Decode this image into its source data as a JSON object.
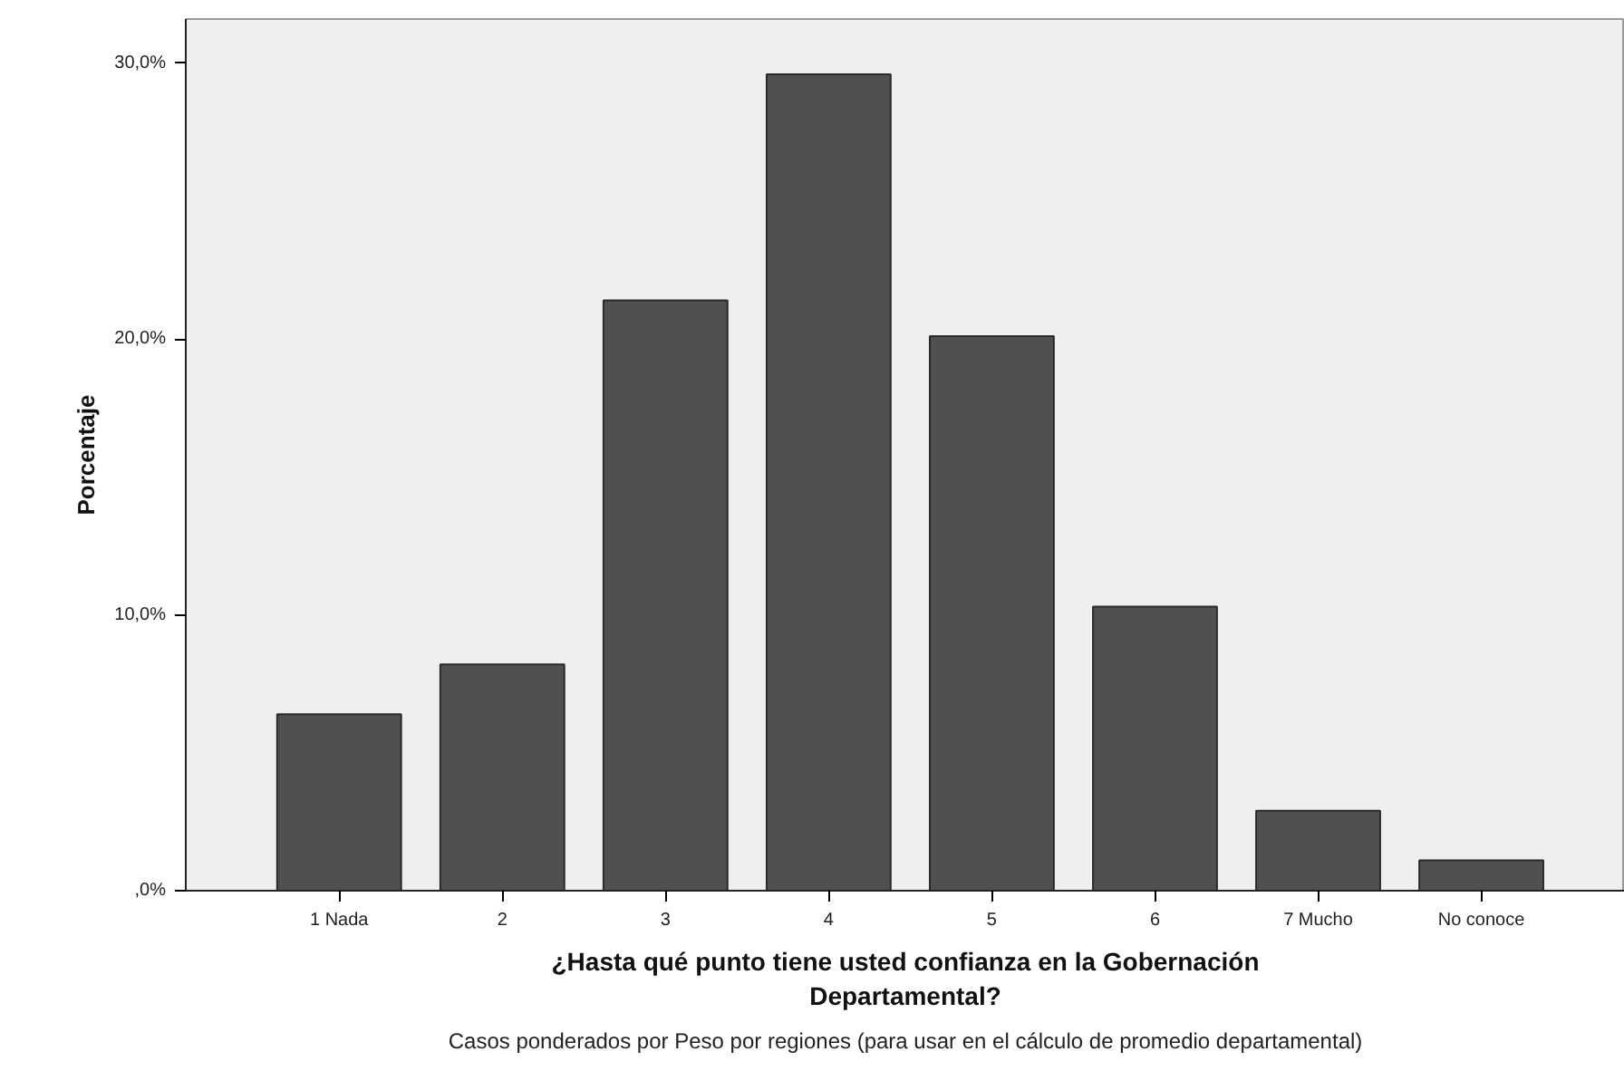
{
  "chart_data": {
    "type": "bar",
    "categories": [
      "1 Nada",
      "2",
      "3",
      "4",
      "5",
      "6",
      "7 Mucho",
      "No conoce"
    ],
    "values": [
      6.4,
      8.2,
      21.4,
      29.6,
      20.1,
      10.3,
      2.9,
      1.1
    ],
    "color": "#505050",
    "xlabel": "¿Hasta qué punto tiene usted confianza en la Gobernación Departamental?",
    "ylabel": "Porcentaje",
    "ylim": [
      0,
      31.6
    ],
    "yticks": [
      {
        "value": 0,
        "label": ",0%"
      },
      {
        "value": 10,
        "label": "10,0%"
      },
      {
        "value": 20,
        "label": "20,0%"
      },
      {
        "value": 30,
        "label": "30,0%"
      }
    ],
    "grid": false,
    "annotations": [
      "Casos ponderados por Peso por regiones (para usar en el cálculo de promedio departamental)"
    ]
  }
}
